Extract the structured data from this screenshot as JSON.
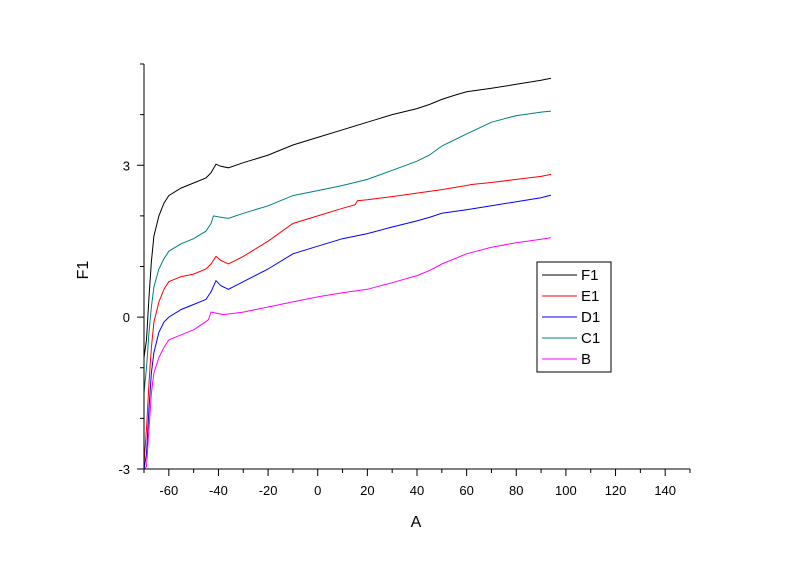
{
  "chart_data": {
    "type": "line",
    "title": "",
    "xlabel": "A",
    "ylabel": "F1",
    "xlim": [
      -70,
      150
    ],
    "ylim": [
      -3,
      5
    ],
    "x_ticks": [
      -60,
      -40,
      -20,
      0,
      20,
      40,
      60,
      80,
      100,
      120,
      140
    ],
    "y_ticks": [
      -3,
      0,
      3
    ],
    "grid": false,
    "legend_position": "right",
    "series": [
      {
        "name": "F1",
        "color": "#000000",
        "points": [
          [
            -70,
            -0.8
          ],
          [
            -69,
            -0.45
          ],
          [
            -68,
            0.4
          ],
          [
            -67,
            1.1
          ],
          [
            -66,
            1.6
          ],
          [
            -64,
            2.0
          ],
          [
            -62,
            2.25
          ],
          [
            -60,
            2.4
          ],
          [
            -55,
            2.55
          ],
          [
            -50,
            2.65
          ],
          [
            -45,
            2.75
          ],
          [
            -43,
            2.85
          ],
          [
            -41,
            3.02
          ],
          [
            -39,
            2.98
          ],
          [
            -36,
            2.95
          ],
          [
            -30,
            3.05
          ],
          [
            -20,
            3.2
          ],
          [
            -10,
            3.4
          ],
          [
            0,
            3.55
          ],
          [
            10,
            3.7
          ],
          [
            20,
            3.85
          ],
          [
            30,
            4.0
          ],
          [
            40,
            4.12
          ],
          [
            45,
            4.2
          ],
          [
            50,
            4.3
          ],
          [
            55,
            4.38
          ],
          [
            60,
            4.45
          ],
          [
            70,
            4.52
          ],
          [
            80,
            4.6
          ],
          [
            90,
            4.68
          ],
          [
            94,
            4.72
          ]
        ]
      },
      {
        "name": "E1",
        "color": "#ff0000",
        "points": [
          [
            -70,
            -2.9
          ],
          [
            -69,
            -2.2
          ],
          [
            -68,
            -1.3
          ],
          [
            -67,
            -0.6
          ],
          [
            -66,
            -0.1
          ],
          [
            -64,
            0.3
          ],
          [
            -62,
            0.55
          ],
          [
            -60,
            0.7
          ],
          [
            -55,
            0.8
          ],
          [
            -50,
            0.85
          ],
          [
            -45,
            0.95
          ],
          [
            -43,
            1.05
          ],
          [
            -41,
            1.2
          ],
          [
            -39,
            1.12
          ],
          [
            -36,
            1.05
          ],
          [
            -30,
            1.2
          ],
          [
            -20,
            1.5
          ],
          [
            -10,
            1.85
          ],
          [
            0,
            2.0
          ],
          [
            10,
            2.15
          ],
          [
            15,
            2.22
          ],
          [
            16,
            2.3
          ],
          [
            20,
            2.32
          ],
          [
            30,
            2.38
          ],
          [
            40,
            2.45
          ],
          [
            50,
            2.52
          ],
          [
            60,
            2.6
          ],
          [
            62,
            2.62
          ],
          [
            70,
            2.66
          ],
          [
            80,
            2.72
          ],
          [
            90,
            2.78
          ],
          [
            94,
            2.82
          ]
        ]
      },
      {
        "name": "D1",
        "color": "#0000ff",
        "points": [
          [
            -70,
            -3.0
          ],
          [
            -69,
            -2.7
          ],
          [
            -68,
            -1.8
          ],
          [
            -67,
            -1.1
          ],
          [
            -66,
            -0.7
          ],
          [
            -64,
            -0.3
          ],
          [
            -62,
            -0.1
          ],
          [
            -60,
            0.0
          ],
          [
            -55,
            0.15
          ],
          [
            -50,
            0.25
          ],
          [
            -45,
            0.35
          ],
          [
            -43,
            0.5
          ],
          [
            -41,
            0.72
          ],
          [
            -39,
            0.62
          ],
          [
            -36,
            0.55
          ],
          [
            -30,
            0.7
          ],
          [
            -20,
            0.95
          ],
          [
            -10,
            1.25
          ],
          [
            0,
            1.4
          ],
          [
            10,
            1.55
          ],
          [
            20,
            1.65
          ],
          [
            30,
            1.78
          ],
          [
            40,
            1.9
          ],
          [
            45,
            1.97
          ],
          [
            50,
            2.05
          ],
          [
            60,
            2.12
          ],
          [
            70,
            2.2
          ],
          [
            80,
            2.28
          ],
          [
            90,
            2.36
          ],
          [
            94,
            2.41
          ]
        ]
      },
      {
        "name": "C1",
        "color": "#008080",
        "points": [
          [
            -70,
            -1.5
          ],
          [
            -69,
            -1.0
          ],
          [
            -68,
            -0.3
          ],
          [
            -67,
            0.2
          ],
          [
            -66,
            0.6
          ],
          [
            -64,
            0.95
          ],
          [
            -62,
            1.15
          ],
          [
            -60,
            1.3
          ],
          [
            -55,
            1.45
          ],
          [
            -50,
            1.55
          ],
          [
            -45,
            1.7
          ],
          [
            -43,
            1.85
          ],
          [
            -42,
            2.0
          ],
          [
            -40,
            1.98
          ],
          [
            -36,
            1.95
          ],
          [
            -30,
            2.05
          ],
          [
            -20,
            2.2
          ],
          [
            -10,
            2.4
          ],
          [
            0,
            2.5
          ],
          [
            10,
            2.6
          ],
          [
            20,
            2.72
          ],
          [
            30,
            2.9
          ],
          [
            40,
            3.08
          ],
          [
            45,
            3.2
          ],
          [
            50,
            3.38
          ],
          [
            60,
            3.62
          ],
          [
            70,
            3.85
          ],
          [
            80,
            3.98
          ],
          [
            90,
            4.05
          ],
          [
            94,
            4.07
          ]
        ]
      },
      {
        "name": "B",
        "color": "#ff00ff",
        "points": [
          [
            -70,
            -3.0
          ],
          [
            -69,
            -2.95
          ],
          [
            -68,
            -2.2
          ],
          [
            -67,
            -1.5
          ],
          [
            -66,
            -1.1
          ],
          [
            -64,
            -0.8
          ],
          [
            -62,
            -0.6
          ],
          [
            -60,
            -0.45
          ],
          [
            -55,
            -0.35
          ],
          [
            -50,
            -0.25
          ],
          [
            -46,
            -0.12
          ],
          [
            -44,
            -0.05
          ],
          [
            -43,
            0.1
          ],
          [
            -41,
            0.08
          ],
          [
            -38,
            0.05
          ],
          [
            -30,
            0.1
          ],
          [
            -20,
            0.2
          ],
          [
            -10,
            0.3
          ],
          [
            0,
            0.4
          ],
          [
            10,
            0.48
          ],
          [
            20,
            0.55
          ],
          [
            30,
            0.68
          ],
          [
            40,
            0.82
          ],
          [
            45,
            0.92
          ],
          [
            50,
            1.05
          ],
          [
            60,
            1.25
          ],
          [
            70,
            1.38
          ],
          [
            80,
            1.47
          ],
          [
            90,
            1.54
          ],
          [
            94,
            1.57
          ]
        ]
      }
    ]
  }
}
